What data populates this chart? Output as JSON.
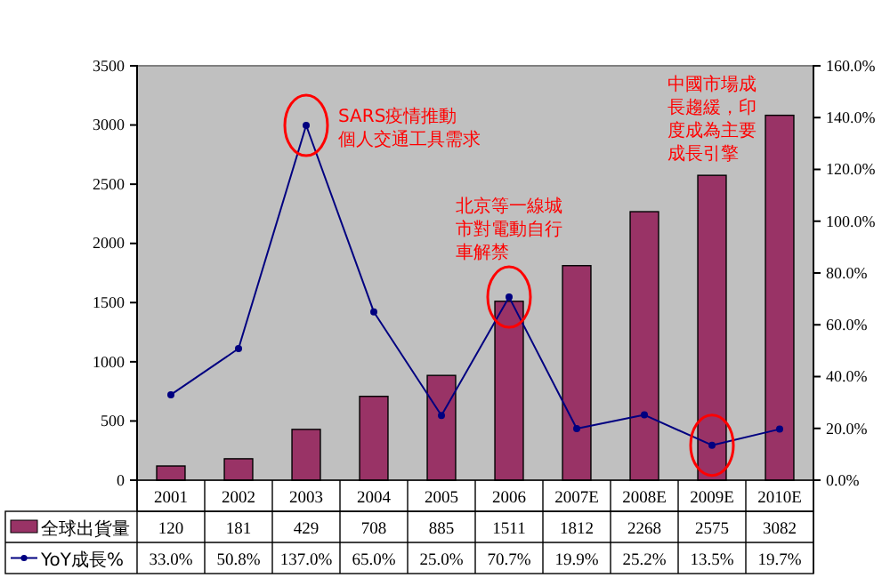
{
  "chart_data": {
    "type": "bar",
    "categories": [
      "2001",
      "2002",
      "2003",
      "2004",
      "2005",
      "2006",
      "2007E",
      "2008E",
      "2009E",
      "2010E"
    ],
    "series": [
      {
        "name": "全球出貨量",
        "color": "#993366",
        "values": [
          120,
          181,
          429,
          708,
          885,
          1511,
          1812,
          2268,
          2575,
          3082
        ]
      },
      {
        "name": "YoY成長%",
        "type": "line",
        "axis": "y2",
        "color": "#000080",
        "marker": "circle",
        "values": [
          33.0,
          50.8,
          137.0,
          65.0,
          25.0,
          70.7,
          19.9,
          25.2,
          13.5,
          19.7
        ]
      }
    ],
    "ylim": [
      0,
      3500
    ],
    "yticks": [
      0,
      500,
      1000,
      1500,
      2000,
      2500,
      3000,
      3500
    ],
    "y2lim": [
      0,
      160
    ],
    "y2ticks": [
      {
        "value": 0,
        "label": "0.0%"
      },
      {
        "value": 20,
        "label": "20.0%"
      },
      {
        "value": 40,
        "label": "40.0%"
      },
      {
        "value": 60,
        "label": "60.0%"
      },
      {
        "value": 80,
        "label": "80.0%"
      },
      {
        "value": 100,
        "label": "100.0%"
      },
      {
        "value": 120,
        "label": "120.0%"
      },
      {
        "value": 140,
        "label": "140.0%"
      },
      {
        "value": 160,
        "label": "160.0%"
      }
    ],
    "value_labels": [
      [
        "120",
        "181",
        "429",
        "708",
        "885",
        "1511",
        "1812",
        "2268",
        "2575",
        "3082"
      ],
      [
        "33.0%",
        "50.8%",
        "137.0%",
        "65.0%",
        "25.0%",
        "70.7%",
        "19.9%",
        "25.2%",
        "13.5%",
        "19.7%"
      ]
    ],
    "legend": "bottom",
    "grid": false,
    "annotations": [
      "SARS疫情推動個人交通工具需求",
      "北京等一線城市對電動自行車解禁",
      "中國市場成長趨緩，印度成為主要成長引擎"
    ]
  }
}
